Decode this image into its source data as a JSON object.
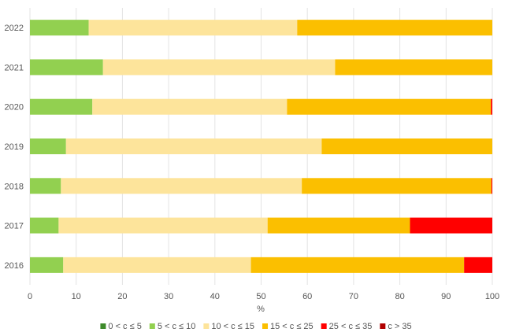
{
  "chart_data": {
    "type": "bar",
    "orientation": "horizontal",
    "stacked": true,
    "categories": [
      "2022",
      "2021",
      "2020",
      "2019",
      "2018",
      "2017",
      "2016"
    ],
    "series": [
      {
        "name": "0 < c ≤ 5",
        "color": "#3d8a2a",
        "values": [
          0,
          0,
          0,
          0,
          0,
          0,
          0
        ]
      },
      {
        "name": "5 < c ≤ 10",
        "color": "#92d050",
        "values": [
          12.7,
          15.8,
          13.5,
          7.8,
          6.7,
          6.2,
          7.2
        ]
      },
      {
        "name": "10 < c ≤ 15",
        "color": "#fde49b",
        "values": [
          45.1,
          50.2,
          42.1,
          55.3,
          52.1,
          45.2,
          40.6
        ]
      },
      {
        "name": "15 < c ≤ 25",
        "color": "#fbbf00",
        "values": [
          42.2,
          34.0,
          44.1,
          36.9,
          41.0,
          30.8,
          46.1
        ]
      },
      {
        "name": "25 < c ≤ 35",
        "color": "#ff0000",
        "values": [
          0,
          0,
          0.3,
          0,
          0.2,
          17.8,
          6.1
        ]
      },
      {
        "name": "c > 35",
        "color": "#b00000",
        "values": [
          0,
          0,
          0,
          0,
          0,
          0,
          0
        ]
      }
    ],
    "xlabel": "%",
    "xlim": [
      0,
      100
    ],
    "xticks": [
      0,
      10,
      20,
      30,
      40,
      50,
      60,
      70,
      80,
      90,
      100
    ],
    "grid": "vertical",
    "legend_position": "bottom"
  }
}
